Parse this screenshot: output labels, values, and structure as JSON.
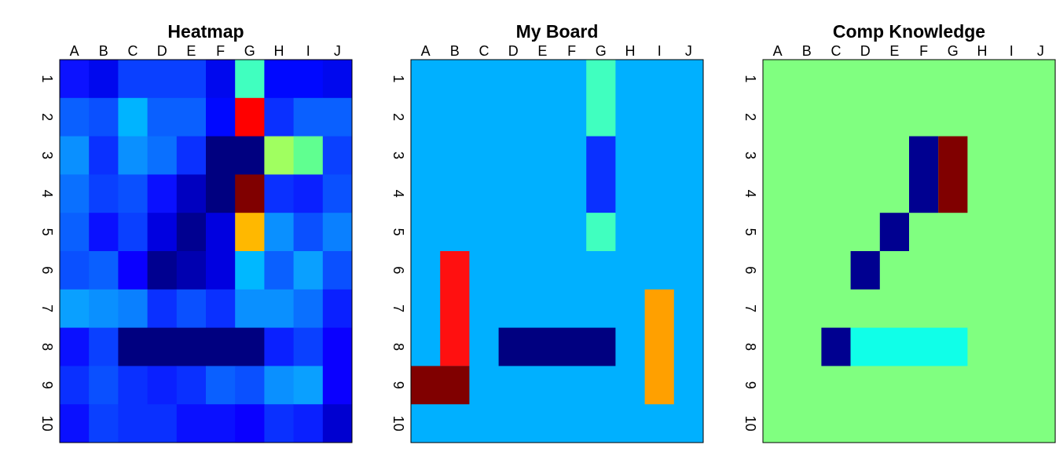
{
  "chart_data": [
    {
      "type": "heatmap",
      "title": "Heatmap",
      "columns": [
        "A",
        "B",
        "C",
        "D",
        "E",
        "F",
        "G",
        "H",
        "I",
        "J"
      ],
      "rows": [
        "1",
        "2",
        "3",
        "4",
        "5",
        "6",
        "7",
        "8",
        "9",
        "10"
      ],
      "cells": [
        [
          "#0c12ff",
          "#0008ee",
          "#0a40ff",
          "#0a40ff",
          "#0a40ff",
          "#0008ee",
          "#40ffbf",
          "#0008ff",
          "#0008ff",
          "#0008ee"
        ],
        [
          "#0a60ff",
          "#0a50ff",
          "#00b4ff",
          "#0a60ff",
          "#0a60ff",
          "#0008ff",
          "#ff0000",
          "#0a30ff",
          "#0a60ff",
          "#0a60ff"
        ],
        [
          "#0a90ff",
          "#0a30ff",
          "#0a90ff",
          "#0a70ff",
          "#0a30ff",
          "#000080",
          "#000080",
          "#a0ff60",
          "#60ff90",
          "#0a40ff"
        ],
        [
          "#0a70ff",
          "#0a40ff",
          "#0a50ff",
          "#0a10ff",
          "#0000c0",
          "#000080",
          "#800000",
          "#0a30ff",
          "#0a20ff",
          "#0a50ff"
        ],
        [
          "#0a60ff",
          "#0a10ff",
          "#0a40ff",
          "#0000e0",
          "#000090",
          "#0000e0",
          "#ffb800",
          "#0a90ff",
          "#0a50ff",
          "#0a80ff"
        ],
        [
          "#0a50ff",
          "#0a60ff",
          "#0a00ff",
          "#000090",
          "#0000b0",
          "#0000e0",
          "#00b8ff",
          "#0a60ff",
          "#0aa0ff",
          "#0a50ff"
        ],
        [
          "#0aa0ff",
          "#0a90ff",
          "#0a80ff",
          "#0a30ff",
          "#0a50ff",
          "#0a30ff",
          "#0a90ff",
          "#0a90ff",
          "#0a70ff",
          "#0a20ff"
        ],
        [
          "#0a10ff",
          "#0a40ff",
          "#000080",
          "#000080",
          "#000080",
          "#000080",
          "#000080",
          "#0a20ff",
          "#0a40ff",
          "#0a00ff"
        ],
        [
          "#0a30ff",
          "#0a50ff",
          "#0a30ff",
          "#0a20ff",
          "#0a30ff",
          "#0a60ff",
          "#0a50ff",
          "#0a90ff",
          "#0aa0ff",
          "#0a00ff"
        ],
        [
          "#0a10ff",
          "#0a40ff",
          "#0a30ff",
          "#0a30ff",
          "#0a10ff",
          "#0a10ff",
          "#0a00ff",
          "#0a30ff",
          "#0a20ff",
          "#0000d0"
        ]
      ]
    },
    {
      "type": "heatmap",
      "title": "My Board",
      "columns": [
        "A",
        "B",
        "C",
        "D",
        "E",
        "F",
        "G",
        "H",
        "I",
        "J"
      ],
      "rows": [
        "1",
        "2",
        "3",
        "4",
        "5",
        "6",
        "7",
        "8",
        "9",
        "10"
      ],
      "background": "#00b0ff",
      "blocks": [
        {
          "col": 6,
          "row": 0,
          "w": 1,
          "h": 2,
          "color": "#40ffbf"
        },
        {
          "col": 6,
          "row": 2,
          "w": 1,
          "h": 2,
          "color": "#0a30ff"
        },
        {
          "col": 6,
          "row": 4,
          "w": 1,
          "h": 1,
          "color": "#40ffbf"
        },
        {
          "col": 1,
          "row": 5,
          "w": 1,
          "h": 3,
          "color": "#ff1010"
        },
        {
          "col": 0,
          "row": 8,
          "w": 2,
          "h": 1,
          "color": "#800000"
        },
        {
          "col": 3,
          "row": 7,
          "w": 4,
          "h": 1,
          "color": "#000080"
        },
        {
          "col": 8,
          "row": 6,
          "w": 1,
          "h": 3,
          "color": "#ffa000"
        }
      ]
    },
    {
      "type": "heatmap",
      "title": "Comp Knowledge",
      "columns": [
        "A",
        "B",
        "C",
        "D",
        "E",
        "F",
        "G",
        "H",
        "I",
        "J"
      ],
      "rows": [
        "1",
        "2",
        "3",
        "4",
        "5",
        "6",
        "7",
        "8",
        "9",
        "10"
      ],
      "background": "#80ff80",
      "blocks": [
        {
          "col": 5,
          "row": 2,
          "w": 1,
          "h": 2,
          "color": "#000090"
        },
        {
          "col": 6,
          "row": 2,
          "w": 1,
          "h": 2,
          "color": "#800000"
        },
        {
          "col": 4,
          "row": 4,
          "w": 1,
          "h": 1,
          "color": "#000090"
        },
        {
          "col": 3,
          "row": 5,
          "w": 1,
          "h": 1,
          "color": "#000090"
        },
        {
          "col": 2,
          "row": 7,
          "w": 1,
          "h": 1,
          "color": "#000090"
        },
        {
          "col": 3,
          "row": 7,
          "w": 4,
          "h": 1,
          "color": "#10ffe8"
        }
      ]
    }
  ]
}
